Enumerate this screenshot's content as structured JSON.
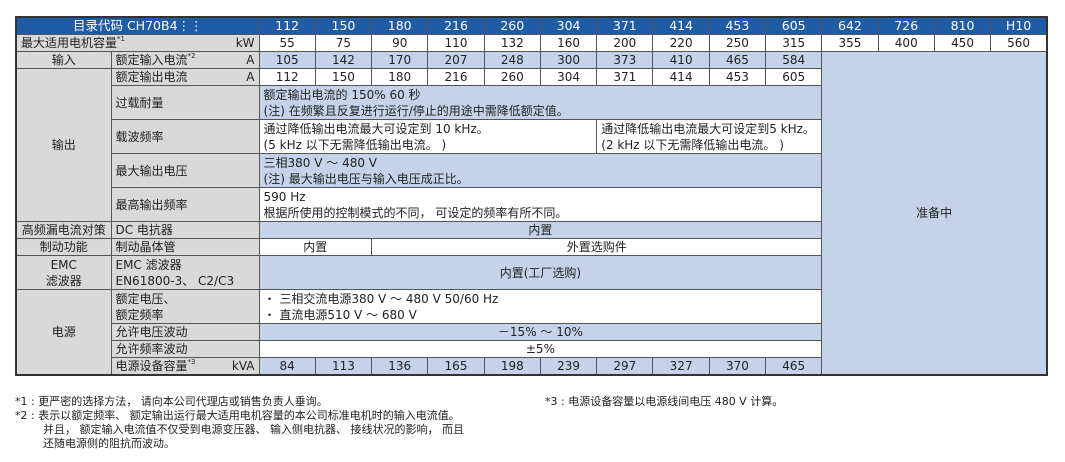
{
  "header": {
    "catalog_label": "目录代码 CH70B4⋮⋮",
    "codes": [
      "112",
      "150",
      "180",
      "216",
      "260",
      "304",
      "371",
      "414",
      "453",
      "605",
      "642",
      "726",
      "810",
      "H10"
    ]
  },
  "rows": {
    "motor_capacity": {
      "label": "最大适用电机容量",
      "note": "*1",
      "unit": "kW",
      "values": [
        "55",
        "75",
        "90",
        "110",
        "132",
        "160",
        "200",
        "220",
        "250",
        "315",
        "355",
        "400",
        "450",
        "560"
      ]
    },
    "input": {
      "group": "输入",
      "label": "额定输入电流",
      "note": "*2",
      "unit": "A",
      "values": [
        "105",
        "142",
        "170",
        "207",
        "248",
        "300",
        "373",
        "410",
        "465",
        "584"
      ]
    },
    "output_group": "输出",
    "rated_output_current": {
      "label": "额定输出电流",
      "unit": "A",
      "values": [
        "112",
        "150",
        "180",
        "216",
        "260",
        "304",
        "371",
        "414",
        "453",
        "605"
      ]
    },
    "overload": {
      "label": "过载耐量",
      "line1": "额定输出电流的 150% 60 秒",
      "line2": "(注) 在频繁且反复进行运行/停止的用途中需降低额定值。"
    },
    "carrier": {
      "label": "载波频率",
      "left_line1": "通过降低输出电流最大可设定到 10 kHz。",
      "left_line2": "(5 kHz 以下无需降低输出电流。 )",
      "right_line1": "通过降低输出电流最大可设定到5 kHz。",
      "right_line2": "(2 kHz 以下无需降低输出电流。 )"
    },
    "max_voltage": {
      "label": "最大输出电压",
      "line1": "三相380 V ～ 480 V",
      "line2": "(注) 最大输出电压与输入电压成正比。"
    },
    "max_freq": {
      "label": "最高输出频率",
      "line1": "590 Hz",
      "line2": "根据所使用的控制模式的不同， 可设定的频率有所不同。"
    },
    "harmonic": {
      "group": "高频漏电流对策",
      "label": "DC 电抗器",
      "value": "内置"
    },
    "braking": {
      "group": "制动功能",
      "label": "制动晶体管",
      "value_left": "内置",
      "value_right": "外置选购件"
    },
    "emc": {
      "group_line1": "EMC",
      "group_line2": "滤波器",
      "label_line1": "EMC 滤波器",
      "label_line2": "EN61800-3、 C2/C3",
      "value": "内置(工厂选购)"
    },
    "power_group": "电源",
    "rated_voltage": {
      "label_line1": "额定电压、",
      "label_line2": "额定频率",
      "line1": "・ 三相交流电源380 V ～ 480 V 50/60 Hz",
      "line2": "・ 直流电源510 V ～ 680 V"
    },
    "voltage_fluct": {
      "label": "允许电压波动",
      "value": "－15% ～ 10%"
    },
    "freq_fluct": {
      "label": "允许频率波动",
      "value": "±5%"
    },
    "power_capacity": {
      "label": "电源设备容量",
      "note": "*3",
      "unit": "kVA",
      "values": [
        "84",
        "113",
        "136",
        "165",
        "198",
        "239",
        "297",
        "327",
        "370",
        "465"
      ]
    },
    "preparing": "准备中"
  },
  "footnotes": {
    "n1": "*1 : 更严密的选择方法， 请向本公司代理店或销售负责人垂询。",
    "n2": "*2 : 表示以额定频率、 额定输出运行最大适用电机容量的本公司标准电机时的输入电流值。",
    "n2b": "并且， 额定输入电流值不仅受到电源变压器、 输入侧电抗器、 接线状况的影响， 而且",
    "n2c": "还随电源侧的阻抗而波动。",
    "n3": "*3 : 电源设备容量以电源线间电压 480 V 计算。"
  },
  "colors": {
    "header": "#1f5ca6",
    "label": "#d9d9d9",
    "shade": "#c5d3ea"
  }
}
